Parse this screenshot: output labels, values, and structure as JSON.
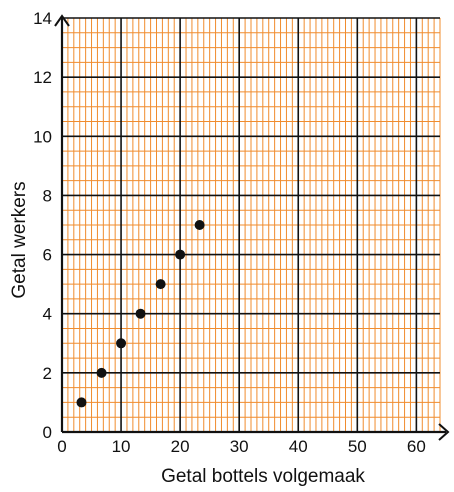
{
  "chart_data": {
    "type": "scatter",
    "xlabel": "Getal bottels volgemaak",
    "ylabel": "Getal werkers",
    "xlim": [
      0,
      64
    ],
    "ylim": [
      0,
      14
    ],
    "x_ticks": [
      "0",
      "10",
      "20",
      "30",
      "40",
      "50",
      "60"
    ],
    "y_ticks": [
      "0",
      "2",
      "4",
      "6",
      "8",
      "10",
      "12",
      "14"
    ],
    "grid": true,
    "minor_grid_step": 1,
    "major_grid_step_x": 10,
    "major_grid_step_y": 2,
    "colors": {
      "minor_grid": "#f08c2e",
      "major_grid": "#111111",
      "points": "#111111"
    },
    "points": [
      {
        "x": 3.3,
        "y": 1
      },
      {
        "x": 6.7,
        "y": 2
      },
      {
        "x": 10,
        "y": 3
      },
      {
        "x": 13.3,
        "y": 4
      },
      {
        "x": 16.7,
        "y": 5
      },
      {
        "x": 20,
        "y": 6
      },
      {
        "x": 23.3,
        "y": 7
      }
    ]
  }
}
